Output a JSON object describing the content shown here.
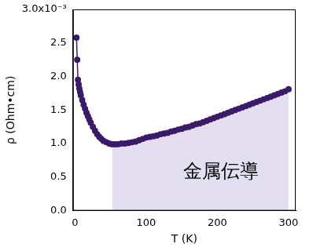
{
  "chart_data": {
    "type": "line",
    "x_label": "T (K)",
    "y_label": "ρ (Ohm•cm)",
    "x": [
      2,
      3,
      4,
      5,
      6,
      7,
      8,
      10,
      12,
      14,
      16,
      18,
      20,
      22,
      25,
      28,
      31,
      34,
      37,
      40,
      44,
      48,
      52,
      56,
      60,
      65,
      70,
      75,
      80,
      85,
      90,
      95,
      100,
      105,
      110,
      115,
      120,
      125,
      130,
      135,
      140,
      145,
      150,
      155,
      160,
      165,
      170,
      175,
      180,
      185,
      190,
      195,
      200,
      205,
      210,
      215,
      220,
      225,
      230,
      235,
      240,
      245,
      250,
      255,
      260,
      265,
      270,
      275,
      280,
      285,
      290,
      295,
      300
    ],
    "values": [
      2.58,
      2.25,
      1.95,
      1.88,
      1.82,
      1.77,
      1.72,
      1.65,
      1.58,
      1.52,
      1.46,
      1.41,
      1.36,
      1.31,
      1.25,
      1.19,
      1.14,
      1.1,
      1.07,
      1.04,
      1.02,
      1.0,
      0.99,
      0.99,
      0.99,
      1.0,
      1.0,
      1.01,
      1.02,
      1.03,
      1.05,
      1.07,
      1.09,
      1.1,
      1.11,
      1.12,
      1.14,
      1.15,
      1.16,
      1.18,
      1.19,
      1.21,
      1.22,
      1.24,
      1.25,
      1.27,
      1.29,
      1.3,
      1.32,
      1.34,
      1.36,
      1.38,
      1.4,
      1.42,
      1.44,
      1.46,
      1.48,
      1.5,
      1.52,
      1.54,
      1.56,
      1.58,
      1.6,
      1.62,
      1.64,
      1.66,
      1.68,
      1.7,
      1.72,
      1.74,
      1.76,
      1.78,
      1.81
    ],
    "color": "#3b1a6b",
    "marker": "circle",
    "line_style": "solid",
    "xlim": [
      -3,
      310
    ],
    "xticks": [
      0,
      100,
      200,
      300
    ],
    "ylim": [
      0,
      3.0
    ],
    "yticks": [
      {
        "value": 0,
        "label": "0.0"
      },
      0.5,
      {
        "value": 1,
        "label": "1.0"
      },
      1.5,
      {
        "value": 2,
        "label": "2.0"
      },
      2.5,
      {
        "value": 3,
        "label": "3.0x10⁻³"
      }
    ],
    "grid": false,
    "annotation": {
      "text": "金属伝導",
      "x_range": [
        50,
        300
      ]
    }
  }
}
